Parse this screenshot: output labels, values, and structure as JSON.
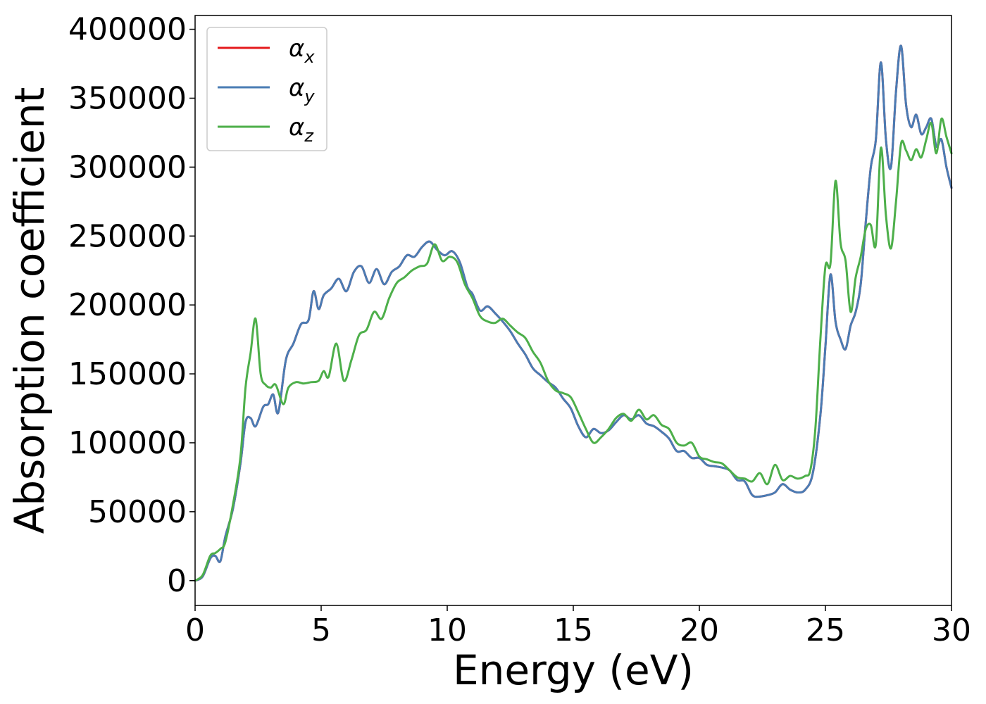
{
  "chart_data": {
    "type": "line",
    "title": "",
    "xlabel": "Energy (eV)",
    "ylabel": "Absorption coefficient",
    "xlim": [
      0,
      30
    ],
    "ylim": [
      -18000,
      410000
    ],
    "xticks": [
      0,
      5,
      10,
      15,
      20,
      25,
      30
    ],
    "yticks": [
      0,
      50000,
      100000,
      150000,
      200000,
      250000,
      300000,
      350000,
      400000
    ],
    "grid": false,
    "legend_position": "top-left",
    "series": [
      {
        "name": "αx",
        "symbol": "α",
        "subscript": "x",
        "color": "#e41a1c",
        "x": [
          0,
          0.3,
          0.6,
          0.8,
          1.0,
          1.2,
          1.5,
          1.8,
          2.0,
          2.2,
          2.4,
          2.7,
          2.9,
          3.1,
          3.3,
          3.6,
          3.9,
          4.2,
          4.5,
          4.7,
          4.9,
          5.1,
          5.4,
          5.7,
          6.0,
          6.3,
          6.6,
          6.9,
          7.2,
          7.5,
          7.8,
          8.1,
          8.4,
          8.7,
          9.0,
          9.3,
          9.6,
          9.9,
          10.2,
          10.5,
          10.8,
          11.0,
          11.3,
          11.6,
          11.9,
          12.2,
          12.5,
          12.8,
          13.1,
          13.4,
          13.7,
          14.0,
          14.3,
          14.6,
          14.9,
          15.2,
          15.5,
          15.8,
          16.1,
          16.4,
          16.7,
          17.0,
          17.3,
          17.6,
          17.9,
          18.2,
          18.5,
          18.8,
          19.1,
          19.4,
          19.7,
          20.0,
          20.3,
          20.6,
          20.9,
          21.2,
          21.5,
          21.8,
          22.1,
          22.4,
          22.7,
          23.0,
          23.3,
          23.6,
          23.9,
          24.2,
          24.5,
          24.8,
          25.0,
          25.2,
          25.4,
          25.6,
          25.8,
          26.0,
          26.2,
          26.4,
          26.6,
          26.8,
          27.0,
          27.2,
          27.4,
          27.6,
          27.8,
          28.0,
          28.2,
          28.4,
          28.6,
          28.8,
          29.0,
          29.2,
          29.4,
          29.6,
          29.8,
          30.0
        ],
        "values": [
          0,
          3000,
          16000,
          18000,
          14000,
          32000,
          52000,
          85000,
          115000,
          118000,
          112000,
          126000,
          128000,
          135000,
          122000,
          160000,
          172000,
          186000,
          189000,
          210000,
          197000,
          207000,
          212000,
          219000,
          210000,
          224000,
          228000,
          216000,
          226000,
          215000,
          224000,
          228000,
          236000,
          235000,
          242000,
          246000,
          240000,
          236000,
          239000,
          231000,
          213000,
          208000,
          196000,
          199000,
          194000,
          188000,
          181000,
          172000,
          164000,
          154000,
          149000,
          144000,
          140000,
          132000,
          125000,
          112000,
          104000,
          110000,
          107000,
          109000,
          115000,
          120000,
          117000,
          120000,
          114000,
          112000,
          108000,
          103000,
          94000,
          94000,
          89000,
          89000,
          84000,
          83000,
          82000,
          80000,
          73000,
          72000,
          62000,
          61000,
          62000,
          64000,
          70000,
          66000,
          64000,
          66000,
          78000,
          120000,
          170000,
          222000,
          188000,
          175000,
          168000,
          185000,
          195000,
          215000,
          260000,
          300000,
          320000,
          376000,
          320000,
          300000,
          355000,
          388000,
          345000,
          329000,
          338000,
          324000,
          329000,
          335000,
          315000,
          320000,
          300000,
          285000
        ]
      },
      {
        "name": "αy",
        "symbol": "α",
        "subscript": "y",
        "color": "#4a7cb4",
        "x": [
          0,
          0.3,
          0.6,
          0.8,
          1.0,
          1.2,
          1.5,
          1.8,
          2.0,
          2.2,
          2.4,
          2.7,
          2.9,
          3.1,
          3.3,
          3.6,
          3.9,
          4.2,
          4.5,
          4.7,
          4.9,
          5.1,
          5.4,
          5.7,
          6.0,
          6.3,
          6.6,
          6.9,
          7.2,
          7.5,
          7.8,
          8.1,
          8.4,
          8.7,
          9.0,
          9.3,
          9.6,
          9.9,
          10.2,
          10.5,
          10.8,
          11.0,
          11.3,
          11.6,
          11.9,
          12.2,
          12.5,
          12.8,
          13.1,
          13.4,
          13.7,
          14.0,
          14.3,
          14.6,
          14.9,
          15.2,
          15.5,
          15.8,
          16.1,
          16.4,
          16.7,
          17.0,
          17.3,
          17.6,
          17.9,
          18.2,
          18.5,
          18.8,
          19.1,
          19.4,
          19.7,
          20.0,
          20.3,
          20.6,
          20.9,
          21.2,
          21.5,
          21.8,
          22.1,
          22.4,
          22.7,
          23.0,
          23.3,
          23.6,
          23.9,
          24.2,
          24.5,
          24.8,
          25.0,
          25.2,
          25.4,
          25.6,
          25.8,
          26.0,
          26.2,
          26.4,
          26.6,
          26.8,
          27.0,
          27.2,
          27.4,
          27.6,
          27.8,
          28.0,
          28.2,
          28.4,
          28.6,
          28.8,
          29.0,
          29.2,
          29.4,
          29.6,
          29.8,
          30.0
        ],
        "values": [
          0,
          3000,
          16000,
          18000,
          14000,
          32000,
          52000,
          85000,
          115000,
          118000,
          112000,
          126000,
          128000,
          135000,
          122000,
          160000,
          172000,
          186000,
          189000,
          210000,
          197000,
          207000,
          212000,
          219000,
          210000,
          224000,
          228000,
          216000,
          226000,
          215000,
          224000,
          228000,
          236000,
          235000,
          242000,
          246000,
          240000,
          236000,
          239000,
          231000,
          213000,
          208000,
          196000,
          199000,
          194000,
          188000,
          181000,
          172000,
          164000,
          154000,
          149000,
          144000,
          140000,
          132000,
          125000,
          112000,
          104000,
          110000,
          107000,
          109000,
          115000,
          120000,
          117000,
          120000,
          114000,
          112000,
          108000,
          103000,
          94000,
          94000,
          89000,
          89000,
          84000,
          83000,
          82000,
          80000,
          73000,
          72000,
          62000,
          61000,
          62000,
          64000,
          70000,
          66000,
          64000,
          66000,
          78000,
          120000,
          170000,
          222000,
          188000,
          175000,
          168000,
          185000,
          195000,
          215000,
          260000,
          300000,
          320000,
          376000,
          320000,
          300000,
          355000,
          388000,
          345000,
          329000,
          338000,
          324000,
          329000,
          335000,
          315000,
          320000,
          300000,
          285000
        ]
      },
      {
        "name": "αz",
        "symbol": "α",
        "subscript": "z",
        "color": "#4daf4a",
        "x": [
          0,
          0.3,
          0.6,
          0.8,
          1.0,
          1.2,
          1.5,
          1.8,
          2.0,
          2.2,
          2.4,
          2.6,
          2.8,
          3.0,
          3.2,
          3.5,
          3.7,
          4.0,
          4.3,
          4.6,
          4.9,
          5.1,
          5.3,
          5.6,
          5.9,
          6.2,
          6.5,
          6.8,
          7.1,
          7.4,
          7.7,
          8.0,
          8.3,
          8.6,
          8.9,
          9.2,
          9.5,
          9.8,
          10.1,
          10.4,
          10.7,
          11.0,
          11.3,
          11.6,
          11.9,
          12.2,
          12.5,
          12.8,
          13.1,
          13.4,
          13.7,
          14.0,
          14.3,
          14.6,
          14.9,
          15.2,
          15.5,
          15.8,
          16.1,
          16.4,
          16.7,
          17.0,
          17.3,
          17.6,
          17.9,
          18.2,
          18.5,
          18.8,
          19.1,
          19.4,
          19.7,
          20.0,
          20.3,
          20.6,
          20.9,
          21.2,
          21.5,
          21.8,
          22.1,
          22.4,
          22.7,
          23.0,
          23.3,
          23.6,
          23.9,
          24.2,
          24.4,
          24.6,
          24.8,
          25.0,
          25.2,
          25.4,
          25.6,
          25.8,
          26.0,
          26.2,
          26.4,
          26.6,
          26.8,
          27.0,
          27.2,
          27.4,
          27.6,
          27.8,
          28.0,
          28.2,
          28.4,
          28.6,
          28.8,
          29.0,
          29.2,
          29.4,
          29.6,
          29.8,
          30.0
        ],
        "values": [
          0,
          4000,
          18000,
          20000,
          23000,
          28000,
          55000,
          90000,
          140000,
          165000,
          190000,
          150000,
          142000,
          140000,
          142000,
          128000,
          140000,
          144000,
          143000,
          144000,
          145000,
          152000,
          148000,
          172000,
          145000,
          160000,
          178000,
          182000,
          195000,
          190000,
          205000,
          216000,
          220000,
          225000,
          228000,
          230000,
          244000,
          232000,
          235000,
          231000,
          215000,
          205000,
          192000,
          188000,
          187000,
          190000,
          185000,
          180000,
          176000,
          166000,
          158000,
          145000,
          138000,
          136000,
          133000,
          122000,
          110000,
          100000,
          104000,
          110000,
          118000,
          121000,
          116000,
          124000,
          117000,
          120000,
          113000,
          110000,
          100000,
          98000,
          100000,
          90000,
          88000,
          86000,
          85000,
          80000,
          75000,
          74000,
          72000,
          78000,
          70000,
          84000,
          73000,
          76000,
          74000,
          76000,
          80000,
          110000,
          175000,
          228000,
          230000,
          290000,
          245000,
          232000,
          195000,
          220000,
          235000,
          255000,
          258000,
          244000,
          314000,
          265000,
          241000,
          275000,
          317000,
          312000,
          305000,
          313000,
          307000,
          320000,
          332000,
          310000,
          335000,
          322000,
          310000
        ]
      }
    ]
  }
}
